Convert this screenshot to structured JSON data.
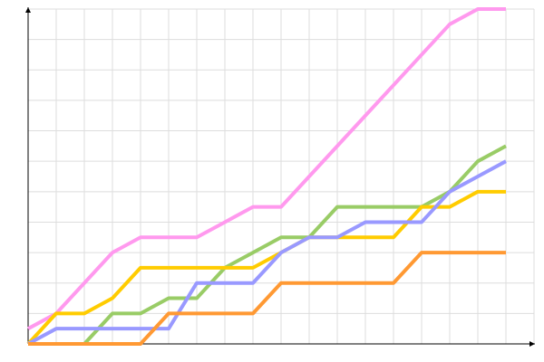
{
  "chart_data": {
    "type": "line",
    "x": [
      0,
      1,
      2,
      3,
      4,
      5,
      6,
      7,
      8,
      9,
      10,
      11,
      12,
      13,
      14,
      15,
      16,
      17
    ],
    "xlim": [
      0,
      18
    ],
    "ylim": [
      0,
      11
    ],
    "xticks": [
      0,
      1,
      2,
      3,
      4,
      5,
      6,
      7,
      8,
      9,
      10,
      11,
      12,
      13,
      14,
      15,
      16,
      17,
      18
    ],
    "yticks": [
      0,
      1,
      2,
      3,
      4,
      5,
      6,
      7,
      8,
      9,
      10,
      11
    ],
    "grid": true,
    "series": [
      {
        "color": "#ff99ee",
        "values": [
          0.5,
          1,
          2,
          3,
          3.5,
          3.5,
          3.5,
          4,
          4.5,
          4.5,
          5.5,
          6.5,
          7.5,
          8.5,
          9.5,
          10.5,
          11,
          11
        ]
      },
      {
        "color": "#99cc66",
        "values": [
          0,
          0,
          0,
          1,
          1,
          1.5,
          1.5,
          2.5,
          3,
          3.5,
          3.5,
          4.5,
          4.5,
          4.5,
          4.5,
          5,
          6,
          6.5
        ]
      },
      {
        "color": "#ffcc00",
        "values": [
          0,
          1,
          1,
          1.5,
          2.5,
          2.5,
          2.5,
          2.5,
          2.5,
          3,
          3.5,
          3.5,
          3.5,
          3.5,
          4.5,
          4.5,
          5,
          5
        ]
      },
      {
        "color": "#9999ff",
        "values": [
          0,
          0.5,
          0.5,
          0.5,
          0.5,
          0.5,
          2,
          2,
          2,
          3,
          3.5,
          3.5,
          4,
          4,
          4,
          5,
          5.5,
          6
        ]
      },
      {
        "color": "#ff9933",
        "values": [
          0,
          0,
          0,
          0,
          0,
          1,
          1,
          1,
          1,
          2,
          2,
          2,
          2,
          2,
          3,
          3,
          3,
          3
        ]
      }
    ]
  }
}
